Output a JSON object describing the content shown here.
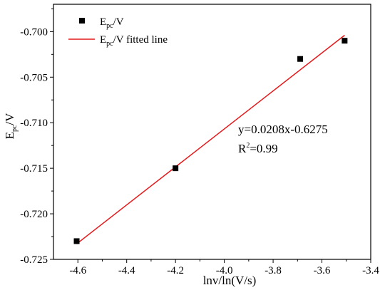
{
  "chart_data": {
    "type": "scatter",
    "xlabel": "lnv/ln(V/s)",
    "ylabel": {
      "main": "E",
      "sub": "pc",
      "tail": "/V"
    },
    "xlim": [
      -4.7,
      -3.4
    ],
    "ylim": [
      -0.725,
      -0.697
    ],
    "xticks": [
      -4.6,
      -4.4,
      -4.2,
      -4.0,
      -3.8,
      -3.6,
      -3.4
    ],
    "xtick_labels": [
      "-4.6",
      "-4.4",
      "-4.2",
      "-4.0",
      "-3.8",
      "-3.6",
      "-3.4"
    ],
    "yticks": [
      -0.725,
      -0.72,
      -0.715,
      -0.71,
      -0.705,
      -0.7
    ],
    "ytick_labels": [
      "-0.725",
      "-0.720",
      "-0.715",
      "-0.710",
      "-0.705",
      "-0.700"
    ],
    "grid": false,
    "legend_position": "top-left",
    "series": [
      {
        "name": {
          "main": "E",
          "sub": "pc",
          "tail": "/V"
        },
        "kind": "scatter",
        "marker": "square",
        "color": "#000000",
        "x": [
          -4.605,
          -4.2,
          -3.689,
          -3.507
        ],
        "y": [
          -0.723,
          -0.715,
          -0.703,
          -0.701
        ]
      },
      {
        "name": {
          "main": "E",
          "sub": "pc",
          "tail": "/V fitted line"
        },
        "kind": "line",
        "color": "#e31a1c",
        "x": [
          -4.605,
          -3.507
        ],
        "y": [
          -0.7233,
          -0.7004
        ]
      }
    ],
    "annotations": {
      "equation": "y=0.0208x-0.6275",
      "r2": {
        "main": "R",
        "sup": "2",
        "tail": "=0.99"
      }
    }
  }
}
